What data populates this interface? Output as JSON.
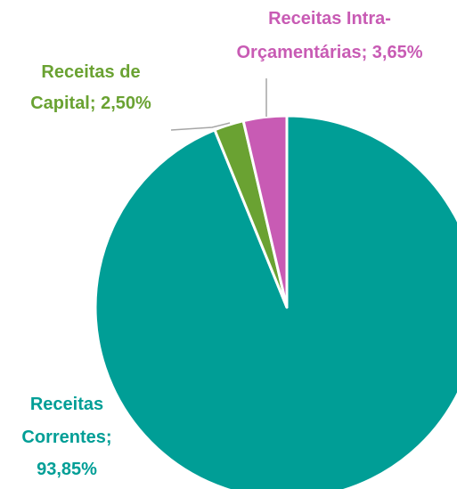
{
  "chart_data": {
    "type": "pie",
    "labels": [
      [
        "Receitas",
        "Correntes;",
        "93,85%"
      ],
      [
        "Receitas de",
        "Capital; 2,50%"
      ],
      [
        "Receitas Intra-",
        "Orçamentárias; 3,65%"
      ]
    ],
    "values": [
      93.85,
      2.5,
      3.65
    ],
    "colors": [
      "#009e96",
      "#6aa232",
      "#c85bb4"
    ]
  }
}
